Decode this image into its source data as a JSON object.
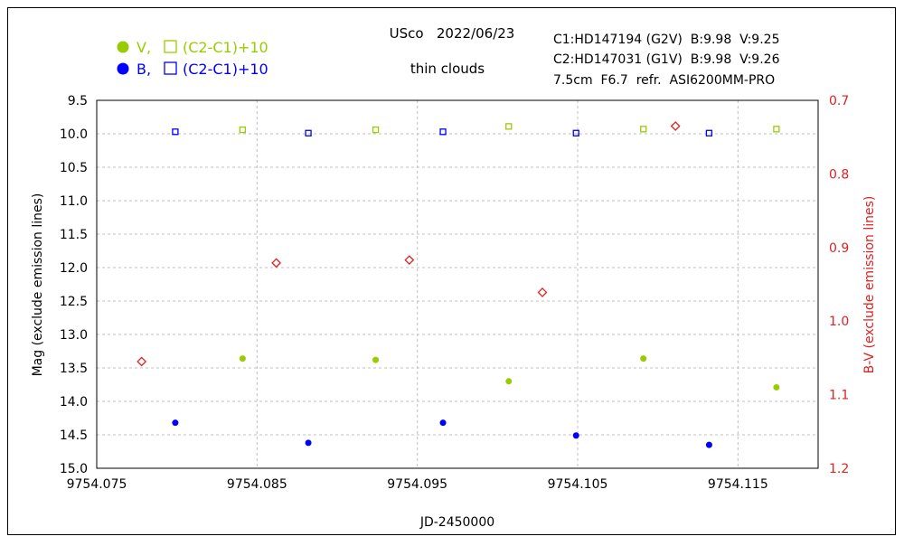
{
  "header": {
    "title": "USco   2022/06/23",
    "note": "thin clouds",
    "comp1": "C1:HD147194 (G2V)  B:9.98  V:9.25",
    "comp2": "C2:HD147031 (G1V)  B:9.98  V:9.26",
    "setup": "7.5cm  F6.7  refr.  ASI6200MM-PRO"
  },
  "legend": {
    "v_label": "V,",
    "v_check_label": "(C2-C1)+10",
    "b_label": "B,",
    "b_check_label": "(C2-C1)+10"
  },
  "colors": {
    "v": "#99cc00",
    "b": "#0000ff",
    "bv": "#dd2222",
    "grid": "#c0c0c0",
    "frame": "#000000"
  },
  "chart_data": {
    "type": "scatter",
    "xlabel": "JD-2450000",
    "ylabel": "Mag (exclude emission lines)",
    "y2label": "B-V (exclude emission lines)",
    "xlim": [
      9754.075,
      9754.12
    ],
    "ylim": [
      15.0,
      9.5
    ],
    "y2lim": [
      1.2,
      0.7
    ],
    "xticks": [
      9754.075,
      9754.085,
      9754.095,
      9754.105,
      9754.115
    ],
    "xtick_labels": [
      "9754.075",
      "9754.085",
      "9754.095",
      "9754.105",
      "9754.115"
    ],
    "yticks": [
      9.5,
      10.0,
      10.5,
      11.0,
      11.5,
      12.0,
      12.5,
      13.0,
      13.5,
      14.0,
      14.5,
      15.0
    ],
    "ytick_labels": [
      "9.5",
      "10.0",
      "10.5",
      "11.0",
      "11.5",
      "12.0",
      "12.5",
      "13.0",
      "13.5",
      "14.0",
      "14.5",
      "15.0"
    ],
    "y2ticks": [
      0.7,
      0.8,
      0.9,
      1.0,
      1.1,
      1.2
    ],
    "y2tick_labels": [
      "0.7",
      "0.8",
      "0.9",
      "1.0",
      "1.1",
      "1.2"
    ],
    "grid": true,
    "series": [
      {
        "key": "V",
        "axis": "left",
        "marker": "filled-circle",
        "color": "#99cc00",
        "x": [
          9754.0841,
          9754.0924,
          9754.1007,
          9754.1091,
          9754.1174
        ],
        "y": [
          13.36,
          13.38,
          13.7,
          13.36,
          13.79
        ]
      },
      {
        "key": "B",
        "axis": "left",
        "marker": "filled-circle",
        "color": "#0000ff",
        "x": [
          9754.0799,
          9754.0882,
          9754.0966,
          9754.1049,
          9754.1132
        ],
        "y": [
          14.32,
          14.62,
          14.32,
          14.51,
          14.65
        ]
      },
      {
        "key": "V check",
        "axis": "left",
        "marker": "open-square",
        "color": "#99cc00",
        "x": [
          9754.0841,
          9754.0924,
          9754.1007,
          9754.1091,
          9754.1174
        ],
        "y": [
          9.94,
          9.94,
          9.89,
          9.93,
          9.93
        ]
      },
      {
        "key": "B check",
        "axis": "left",
        "marker": "open-square",
        "color": "#0000ff",
        "x": [
          9754.0799,
          9754.0882,
          9754.0966,
          9754.1049,
          9754.1132
        ],
        "y": [
          9.97,
          9.99,
          9.97,
          9.99,
          9.99
        ]
      },
      {
        "key": "B-V",
        "axis": "right",
        "marker": "open-diamond",
        "color": "#dd2222",
        "x": [
          9754.0778,
          9754.0862,
          9754.0945,
          9754.1028,
          9754.1111
        ],
        "y": [
          1.055,
          0.921,
          0.917,
          0.961,
          0.735
        ]
      }
    ]
  }
}
